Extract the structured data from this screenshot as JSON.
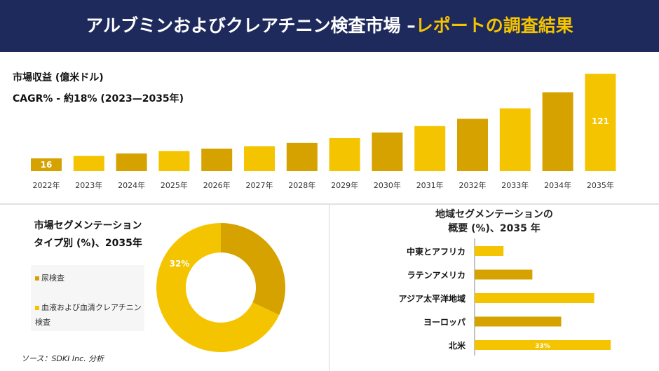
{
  "header": {
    "title_main": "アルブミンおよびクレアチニン検査市場 –",
    "title_accent": "レポートの調査結果"
  },
  "market": {
    "title": "市場収益 (億米ドル)",
    "cagr": "CAGR% - 約18% (2023—2035年)"
  },
  "segmentation": {
    "title_line1": "市場セグメンテーション",
    "title_line2": "タイプ別 (%)、2035年"
  },
  "region": {
    "title_line1": "地域セグメンテーションの",
    "title_line2": "概要 (%)、2035 年"
  },
  "source": "ソース：SDKI Inc. 分析",
  "colors": {
    "header_bg": "#1f2a5c",
    "accent": "#f5c400",
    "bar_primary": "#f5c400",
    "bar_secondary": "#d6a200"
  },
  "chart_data": [
    {
      "type": "bar",
      "categories": [
        "2022年",
        "2023年",
        "2024年",
        "2025年",
        "2026年",
        "2027年",
        "2028年",
        "2029年",
        "2030年",
        "2031年",
        "2032年",
        "2033年",
        "2034年",
        "2035年"
      ],
      "values": [
        16,
        19,
        22,
        25,
        28,
        31,
        35,
        41,
        48,
        56,
        65,
        78,
        98,
        121
      ],
      "data_labels": {
        "0": "16",
        "13": "121"
      },
      "ylim": [
        0,
        130
      ]
    },
    {
      "type": "pie",
      "categories": [
        "尿検査",
        "血液および血清クレアチニン検査"
      ],
      "values": [
        32,
        68
      ],
      "data_labels": {
        "0": "32%"
      },
      "colors": [
        "#d6a200",
        "#f5c400"
      ]
    },
    {
      "type": "bar",
      "orientation": "horizontal",
      "categories": [
        "中東とアフリカ",
        "ラテンアメリカ",
        "アジア太平洋地域",
        "ヨーロッパ",
        "北米"
      ],
      "values": [
        7,
        14,
        29,
        21,
        33
      ],
      "data_labels": {
        "4": "33%"
      },
      "xlim": [
        0,
        34
      ]
    }
  ]
}
